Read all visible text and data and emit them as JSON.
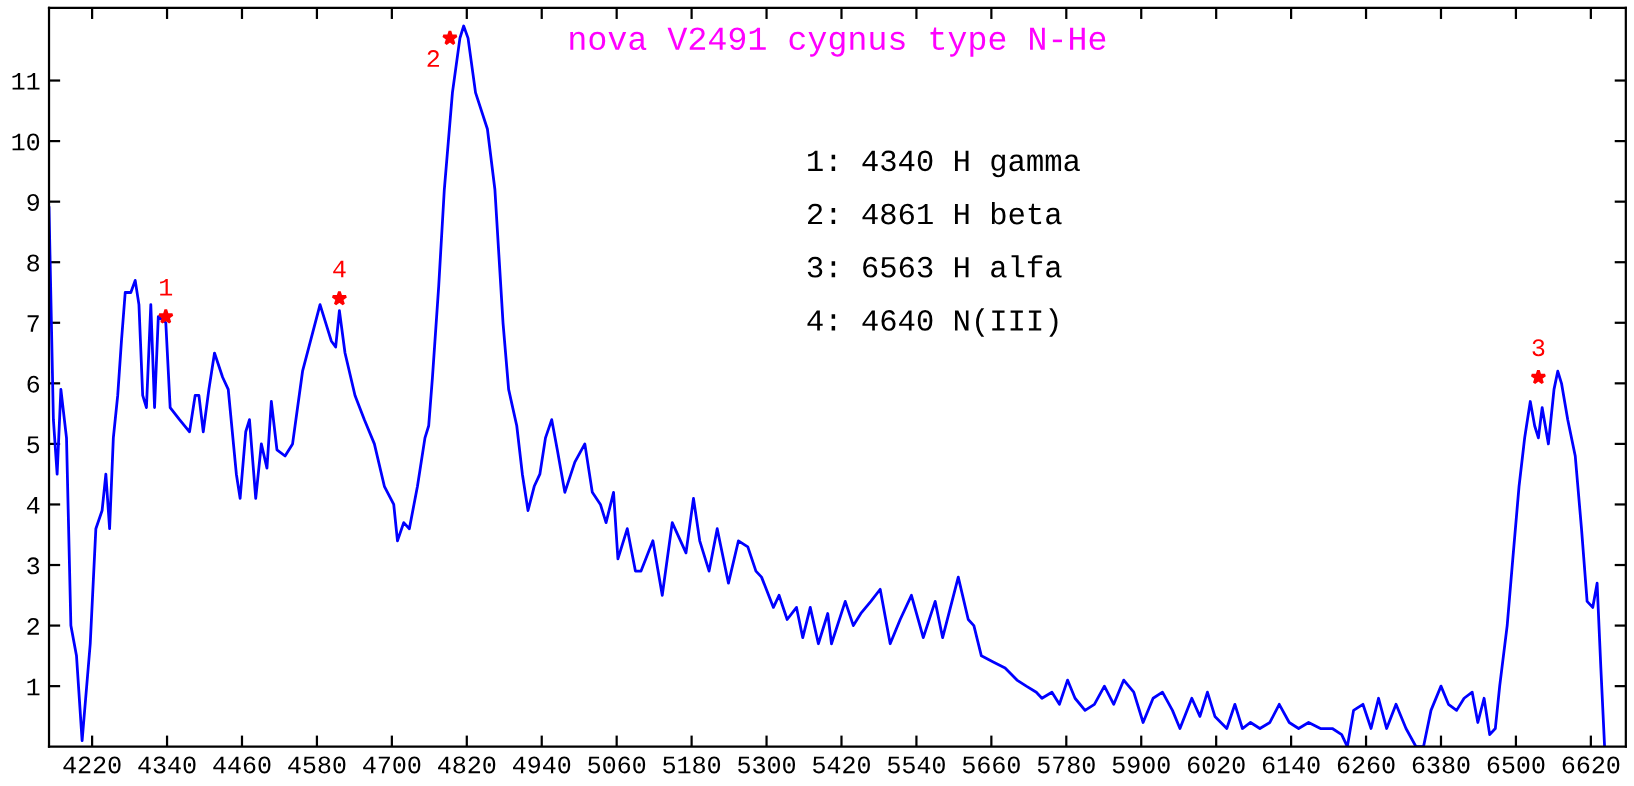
{
  "chart_data": {
    "type": "line",
    "title": "nova V2491 cygnus type N-He",
    "x": [
      4151,
      4158,
      4164,
      4170,
      4179,
      4186,
      4195,
      4204,
      4217,
      4226,
      4236,
      4242,
      4248,
      4254,
      4261,
      4267,
      4273,
      4282,
      4289,
      4295,
      4301,
      4307,
      4314,
      4320,
      4326,
      4338,
      4345,
      4360,
      4376,
      4385,
      4391,
      4398,
      4407,
      4416,
      4429,
      4438,
      4451,
      4457,
      4466,
      4472,
      4482,
      4491,
      4500,
      4507,
      4516,
      4529,
      4541,
      4557,
      4585,
      4603,
      4610,
      4616,
      4625,
      4641,
      4656,
      4672,
      4688,
      4703,
      4709,
      4719,
      4728,
      4741,
      4753,
      4759,
      4765,
      4775,
      4784,
      4797,
      4809,
      4815,
      4822,
      4834,
      4853,
      4865,
      4878,
      4887,
      4900,
      4909,
      4918,
      4928,
      4937,
      4946,
      4956,
      4965,
      4977,
      4993,
      5009,
      5021,
      5034,
      5043,
      5055,
      5062,
      5077,
      5090,
      5099,
      5118,
      5133,
      5149,
      5171,
      5183,
      5193,
      5208,
      5221,
      5239,
      5255,
      5270,
      5283,
      5292,
      5311,
      5320,
      5333,
      5348,
      5358,
      5370,
      5383,
      5398,
      5404,
      5426,
      5439,
      5451,
      5467,
      5482,
      5498,
      5514,
      5532,
      5551,
      5570,
      5582,
      5607,
      5623,
      5632,
      5644,
      5663,
      5682,
      5701,
      5716,
      5732,
      5741,
      5757,
      5769,
      5782,
      5794,
      5810,
      5825,
      5841,
      5856,
      5872,
      5888,
      5903,
      5919,
      5934,
      5950,
      5962,
      5981,
      5994,
      6006,
      6018,
      6037,
      6050,
      6062,
      6075,
      6090,
      6106,
      6121,
      6137,
      6152,
      6168,
      6187,
      6206,
      6221,
      6230,
      6240,
      6255,
      6268,
      6280,
      6293,
      6308,
      6324,
      6340,
      6352,
      6364,
      6380,
      6392,
      6405,
      6417,
      6430,
      6439,
      6449,
      6458,
      6467,
      6474,
      6486,
      6495,
      6505,
      6514,
      6523,
      6530,
      6536,
      6542,
      6552,
      6561,
      6567,
      6573,
      6583,
      6595,
      6605,
      6614,
      6623,
      6630,
      6636,
      6642
    ],
    "series": [
      {
        "color": "#0000ff",
        "values": [
          8.9,
          5.4,
          4.5,
          5.9,
          5.1,
          2.0,
          1.5,
          0.1,
          1.7,
          3.6,
          3.9,
          4.5,
          3.6,
          5.1,
          5.8,
          6.7,
          7.5,
          7.5,
          7.7,
          7.3,
          5.8,
          5.6,
          7.3,
          5.6,
          7.1,
          7.0,
          5.6,
          5.4,
          5.2,
          5.8,
          5.8,
          5.2,
          5.9,
          6.5,
          6.1,
          5.9,
          4.5,
          4.1,
          5.2,
          5.4,
          4.1,
          5.0,
          4.6,
          5.7,
          4.9,
          4.8,
          5.0,
          6.2,
          7.3,
          6.7,
          6.6,
          7.2,
          6.5,
          5.8,
          5.4,
          5.0,
          4.3,
          4.0,
          3.4,
          3.7,
          3.6,
          4.3,
          5.1,
          5.3,
          6.1,
          7.6,
          9.2,
          10.8,
          11.7,
          11.9,
          11.7,
          10.8,
          10.2,
          9.2,
          7.0,
          5.9,
          5.3,
          4.5,
          3.9,
          4.3,
          4.5,
          5.1,
          5.4,
          4.9,
          4.2,
          4.7,
          5.0,
          4.2,
          4.0,
          3.7,
          4.2,
          3.1,
          3.6,
          2.9,
          2.9,
          3.4,
          2.5,
          3.7,
          3.2,
          4.1,
          3.4,
          2.9,
          3.6,
          2.7,
          3.4,
          3.3,
          2.9,
          2.8,
          2.3,
          2.5,
          2.1,
          2.3,
          1.8,
          2.3,
          1.7,
          2.2,
          1.7,
          2.4,
          2.0,
          2.2,
          2.4,
          2.6,
          1.7,
          2.1,
          2.5,
          1.8,
          2.4,
          1.8,
          2.8,
          2.1,
          2.0,
          1.5,
          1.4,
          1.3,
          1.1,
          1.0,
          0.9,
          0.8,
          0.9,
          0.7,
          1.1,
          0.8,
          0.6,
          0.7,
          1.0,
          0.7,
          1.1,
          0.9,
          0.4,
          0.8,
          0.9,
          0.6,
          0.3,
          0.8,
          0.5,
          0.9,
          0.5,
          0.3,
          0.7,
          0.3,
          0.4,
          0.3,
          0.4,
          0.7,
          0.4,
          0.3,
          0.4,
          0.3,
          0.3,
          0.2,
          0.0,
          0.6,
          0.7,
          0.3,
          0.8,
          0.3,
          0.7,
          0.3,
          0.0,
          0.0,
          0.6,
          1.0,
          0.7,
          0.6,
          0.8,
          0.9,
          0.4,
          0.8,
          0.2,
          0.3,
          1.0,
          2.0,
          3.1,
          4.3,
          5.1,
          5.7,
          5.3,
          5.1,
          5.6,
          5.0,
          5.9,
          6.2,
          6.0,
          5.4,
          4.8,
          3.6,
          2.4,
          2.3,
          2.7,
          1.3,
          0.0
        ]
      }
    ],
    "xlim": [
      4151,
      6676
    ],
    "ylim": [
      0,
      12.2
    ],
    "xticks": [
      4220,
      4340,
      4460,
      4580,
      4700,
      4820,
      4940,
      5060,
      5180,
      5300,
      5420,
      5540,
      5660,
      5780,
      5900,
      6020,
      6140,
      6260,
      6380,
      6500,
      6620
    ],
    "yticks": [
      1,
      2,
      3,
      4,
      5,
      6,
      7,
      8,
      9,
      10,
      11
    ],
    "annotations": [
      {
        "text": "1",
        "x": 4338,
        "y": 7.1
      },
      {
        "text": "4",
        "x": 4616,
        "y": 7.4
      },
      {
        "text": "2",
        "x": 4793,
        "y": 11.7
      },
      {
        "text": "3",
        "x": 6536,
        "y": 6.1
      },
      "1: 4340 H gamma",
      "2: 4861 H beta",
      "3: 6563 H alfa",
      "4: 4640 N(III)"
    ],
    "grid": false,
    "legend": false,
    "marker": "none",
    "line_style": "solid"
  }
}
